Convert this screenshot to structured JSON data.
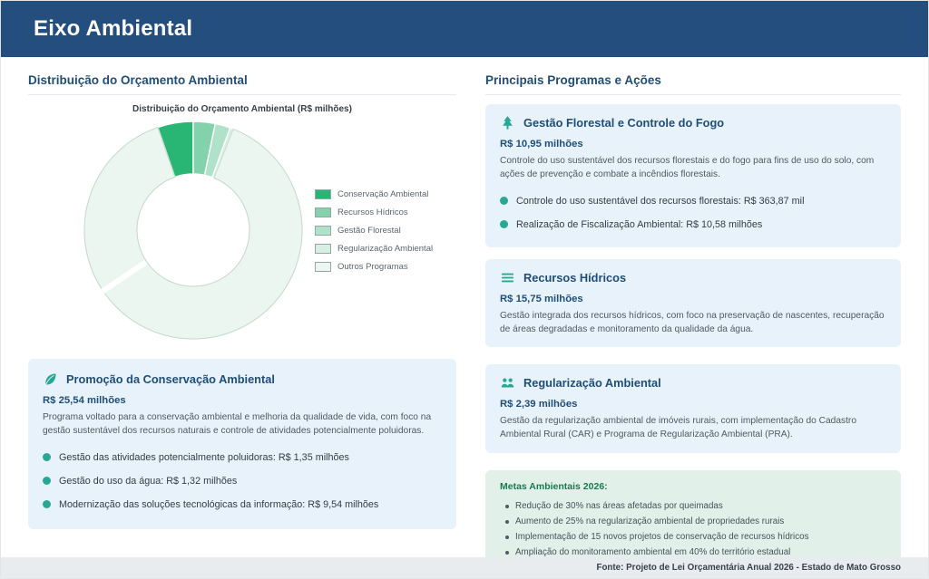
{
  "theme": {
    "header_bg": "#234e7d",
    "navy_text": "#1f4e79",
    "accent_teal": "#28a795",
    "card_blue_bg": "#e7f2fa",
    "goals_green_bg": "#e1f0e8",
    "footer_bg": "#e8ecef"
  },
  "header": {
    "title": "Eixo Ambiental"
  },
  "left": {
    "section_title": "Distribuição do Orçamento Ambiental",
    "highlight_card": {
      "icon": "leaf",
      "title": "Promoção da Conservação Ambiental",
      "amount": "R$ 25,54 milhões",
      "description": "Programa voltado para a conservação ambiental e melhoria da qualidade de vida, com foco na gestão sustentável dos recursos naturais e controle de atividades potencialmente poluidoras.",
      "bullets": [
        "Gestão das atividades potencialmente poluidoras: R$ 1,35 milhões",
        "Gestão do uso da água: R$ 1,32 milhões",
        "Modernização das soluções tecnológicas da informação: R$ 9,54 milhões"
      ]
    }
  },
  "right": {
    "section_title": "Principais Programas e Ações",
    "cards": [
      {
        "icon": "tree",
        "title": "Gestão Florestal e Controle do Fogo",
        "amount": "R$ 10,95 milhões",
        "description": "Controle do uso sustentável dos recursos florestais e do fogo para fins de uso do solo, com ações de prevenção e combate a incêndios florestais.",
        "bullets": [
          "Controle do uso sustentável dos recursos florestais: R$ 363,87 mil",
          "Realização de Fiscalização Ambiental: R$ 10,58 milhões"
        ]
      },
      {
        "icon": "water-lines",
        "title": "Recursos Hídricos",
        "amount": "R$ 15,75 milhões",
        "description": "Gestão integrada dos recursos hídricos, com foco na preservação de nascentes, recuperação de áreas degradadas e monitoramento da qualidade da água.",
        "bullets": []
      },
      {
        "icon": "people-group",
        "title": "Regularização Ambiental",
        "amount": "R$ 2,39 milhões",
        "description": "Gestão da regularização ambiental de imóveis rurais, com implementação do Cadastro Ambiental Rural (CAR) e Programa de Regularização Ambiental (PRA).",
        "bullets": []
      }
    ],
    "goals_card": {
      "title": "Metas Ambientais 2026:",
      "items": [
        "Redução de 30% nas áreas afetadas por queimadas",
        "Aumento de 25% na regularização ambiental de propriedades rurais",
        "Implementação de 15 novos projetos de conservação de recursos hídricos",
        "Ampliação do monitoramento ambiental em 40% do território estadual"
      ]
    }
  },
  "footer": {
    "source": "Fonte: Projeto de Lei Orçamentária Anual 2026 - Estado de Mato Grosso"
  },
  "chart_data": {
    "type": "pie",
    "subtype": "donut",
    "title": "Distribuição do Orçamento Ambiental (R$ milhões)",
    "labels": [
      "Conservação Ambiental",
      "Recursos Hídricos",
      "Gestão Florestal",
      "Regularização Ambiental",
      "Outros Programas"
    ],
    "values": [
      25.54,
      15.75,
      10.95,
      2.39,
      430
    ],
    "outros_value_estimated": true,
    "unit": "R$ milhões",
    "colors": [
      "#29b573",
      "#82d3ab",
      "#b0e2c9",
      "#d7efe1",
      "#eaf6ef"
    ],
    "legend_position": "right",
    "start_angle": -19,
    "clockwise": true
  }
}
